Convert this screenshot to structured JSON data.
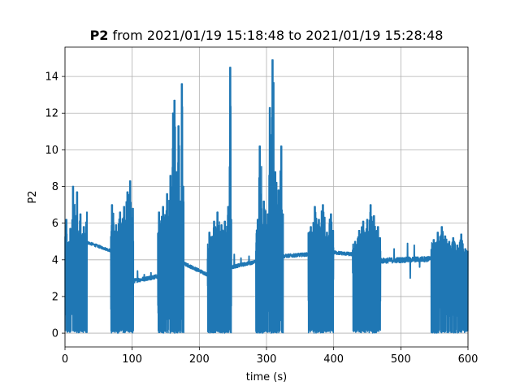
{
  "chart_data": {
    "type": "line",
    "title": {
      "bold": "P2",
      "rest": " from 2021/01/19 15:18:48 to 2021/01/19 15:28:48"
    },
    "xlabel": "time (s)",
    "ylabel": "P2",
    "xlim": [
      0,
      600
    ],
    "ylim": [
      -0.75,
      15.6
    ],
    "xticks": [
      0,
      100,
      200,
      300,
      400,
      500,
      600
    ],
    "yticks": [
      0,
      2,
      4,
      6,
      8,
      10,
      12,
      14
    ],
    "grid": true,
    "series": [
      {
        "color": "#1f77b4",
        "segments": [
          {
            "x0": 0,
            "x1": 33,
            "mode": "burst",
            "bl": 3.0,
            "peaks": [
              [
                2,
                6.2
              ],
              [
                8,
                5.7
              ],
              [
                12,
                8.0
              ],
              [
                18,
                7.7
              ],
              [
                23,
                6.5
              ],
              [
                28,
                5.8
              ],
              [
                33,
                6.6
              ]
            ]
          },
          {
            "x0": 33,
            "x1": 68,
            "mode": "flat",
            "y0": 4.95,
            "y1": 4.5,
            "noise": 0.08
          },
          {
            "x0": 68,
            "x1": 102,
            "mode": "burst",
            "bl": 3.2,
            "peaks": [
              [
                70,
                7.0
              ],
              [
                76,
                5.9
              ],
              [
                82,
                6.6
              ],
              [
                88,
                6.9
              ],
              [
                93,
                7.7
              ],
              [
                97,
                8.3
              ],
              [
                101,
                6.8
              ]
            ]
          },
          {
            "x0": 102,
            "x1": 138,
            "mode": "flat",
            "y0": 2.85,
            "y1": 3.1,
            "noise": 0.12,
            "spikes": [
              [
                108,
                3.4
              ],
              [
                118,
                3.2
              ],
              [
                128,
                3.3
              ]
            ]
          },
          {
            "x0": 138,
            "x1": 177,
            "mode": "burst",
            "bl": 3.2,
            "peaks": [
              [
                140,
                6.6
              ],
              [
                146,
                6.9
              ],
              [
                152,
                7.6
              ],
              [
                157,
                8.6
              ],
              [
                161,
                12.0
              ],
              [
                163,
                12.7
              ],
              [
                166,
                8.8
              ],
              [
                169,
                11.3
              ],
              [
                172,
                7.2
              ],
              [
                174,
                13.6
              ],
              [
                176,
                8.0
              ]
            ]
          },
          {
            "x0": 177,
            "x1": 212,
            "mode": "flat",
            "y0": 3.8,
            "y1": 3.2,
            "noise": 0.1
          },
          {
            "x0": 212,
            "x1": 248,
            "mode": "burst",
            "bl": 3.2,
            "peaks": [
              [
                215,
                5.5
              ],
              [
                222,
                6.1
              ],
              [
                227,
                6.6
              ],
              [
                233,
                5.9
              ],
              [
                238,
                6.1
              ],
              [
                243,
                6.9
              ],
              [
                246,
                14.5
              ],
              [
                248,
                6.2
              ]
            ]
          },
          {
            "x0": 248,
            "x1": 284,
            "mode": "flat",
            "y0": 3.6,
            "y1": 3.9,
            "noise": 0.1,
            "spikes": [
              [
                252,
                4.3
              ],
              [
                262,
                4.1
              ],
              [
                274,
                4.2
              ]
            ]
          },
          {
            "x0": 284,
            "x1": 325,
            "mode": "burst",
            "bl": 3.3,
            "peaks": [
              [
                287,
                6.2
              ],
              [
                290,
                10.2
              ],
              [
                296,
                7.2
              ],
              [
                302,
                6.5
              ],
              [
                305,
                12.3
              ],
              [
                309,
                14.9
              ],
              [
                313,
                8.8
              ],
              [
                318,
                7.8
              ],
              [
                322,
                10.2
              ],
              [
                325,
                6.5
              ]
            ]
          },
          {
            "x0": 325,
            "x1": 362,
            "mode": "flat",
            "y0": 4.2,
            "y1": 4.3,
            "noise": 0.1
          },
          {
            "x0": 362,
            "x1": 400,
            "mode": "burst",
            "bl": 4.0,
            "peaks": [
              [
                366,
                5.8
              ],
              [
                372,
                6.9
              ],
              [
                378,
                6.2
              ],
              [
                384,
                7.0
              ],
              [
                390,
                5.5
              ],
              [
                396,
                6.5
              ],
              [
                399,
                5.6
              ]
            ]
          },
          {
            "x0": 400,
            "x1": 428,
            "mode": "flat",
            "y0": 4.4,
            "y1": 4.3,
            "noise": 0.1
          },
          {
            "x0": 428,
            "x1": 470,
            "mode": "burst",
            "bl": 4.0,
            "peaks": [
              [
                432,
                5.0
              ],
              [
                438,
                5.6
              ],
              [
                444,
                6.1
              ],
              [
                450,
                6.2
              ],
              [
                455,
                7.0
              ],
              [
                460,
                6.4
              ],
              [
                466,
                5.8
              ],
              [
                469,
                5.2
              ]
            ]
          },
          {
            "x0": 470,
            "x1": 545,
            "mode": "flat",
            "y0": 3.95,
            "y1": 4.05,
            "noise": 0.15,
            "spikes": [
              [
                490,
                4.6
              ],
              [
                510,
                4.9
              ],
              [
                514,
                3.0
              ],
              [
                520,
                4.8
              ],
              [
                528,
                3.6
              ]
            ]
          },
          {
            "x0": 545,
            "x1": 600,
            "mode": "burst",
            "bl": 3.8,
            "peaks": [
              [
                549,
                5.1
              ],
              [
                555,
                5.5
              ],
              [
                561,
                5.8
              ],
              [
                566,
                5.3
              ],
              [
                572,
                5.0
              ],
              [
                578,
                5.2
              ],
              [
                584,
                4.8
              ],
              [
                590,
                5.4
              ],
              [
                596,
                4.6
              ]
            ]
          }
        ]
      }
    ]
  }
}
